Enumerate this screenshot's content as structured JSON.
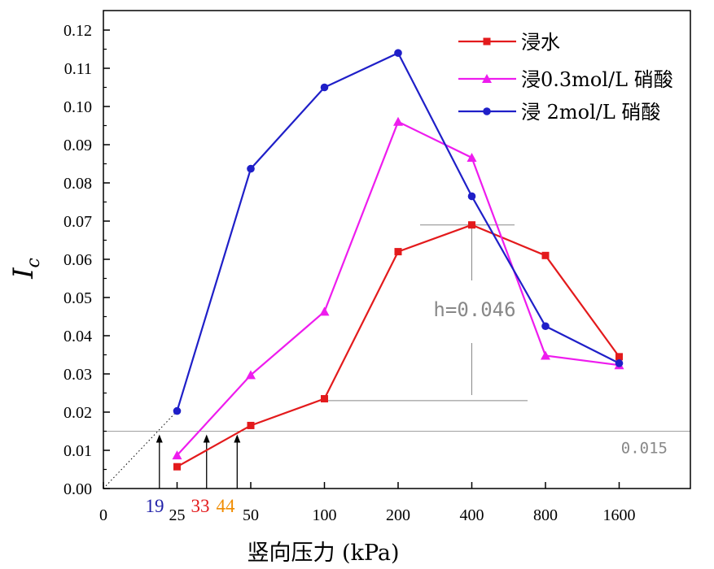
{
  "chart_data": {
    "type": "line",
    "title": "",
    "xlabel": "竖向压力 (kPa)",
    "ylabel_main": "I",
    "ylabel_sub": "c",
    "x_categories": [
      "25",
      "50",
      "100",
      "200",
      "400",
      "800",
      "1600"
    ],
    "x_origin_label": "0",
    "ylim": [
      0,
      0.12
    ],
    "y_ticks": [
      "0.00",
      "0.01",
      "0.02",
      "0.03",
      "0.04",
      "0.05",
      "0.06",
      "0.07",
      "0.08",
      "0.09",
      "0.10",
      "0.11",
      "0.12"
    ],
    "series": [
      {
        "name": "浸水",
        "color": "#e31a1c",
        "marker": "square",
        "values": [
          0.0057,
          0.0165,
          0.0235,
          0.062,
          0.069,
          0.061,
          0.0345
        ]
      },
      {
        "name": "浸0.3mol/L 硝酸",
        "color": "#ee1cee",
        "marker": "triangle",
        "values": [
          0.0087,
          0.0297,
          0.0463,
          0.096,
          0.0866,
          0.0348,
          0.0323
        ]
      },
      {
        "name": "浸 2mol/L 硝酸",
        "color": "#1f1fc8",
        "marker": "circle",
        "values": [
          0.0203,
          0.0837,
          0.105,
          0.114,
          0.0765,
          0.0425,
          0.0328
        ]
      }
    ],
    "legend_position": "top-right",
    "annotations": {
      "threshold_value": 0.015,
      "threshold_label": "0.015",
      "h_label": "h=0.046",
      "h_top": 0.069,
      "h_bottom": 0.023,
      "intersections": [
        {
          "label": "19",
          "color": "#1f1fa8",
          "x_kpa": 19
        },
        {
          "label": "33",
          "color": "#e31a1c",
          "x_kpa": 33
        },
        {
          "label": "44",
          "color": "#f08c00",
          "x_kpa": 44
        }
      ]
    }
  }
}
